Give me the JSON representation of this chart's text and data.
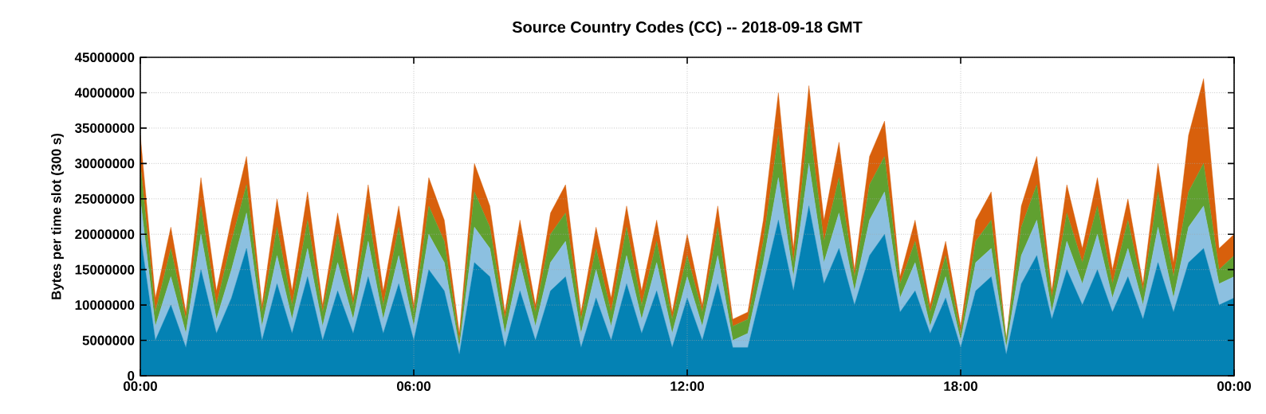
{
  "chart_data": {
    "type": "area",
    "stacked": true,
    "title": "Source Country Codes (CC) -- 2018-09-18 GMT",
    "ylabel": "Bytes per time slot (300 s)",
    "x": [
      0,
      0.33,
      0.67,
      1,
      1.33,
      1.67,
      2,
      2.33,
      2.67,
      3,
      3.33,
      3.67,
      4,
      4.33,
      4.67,
      5,
      5.33,
      5.67,
      6,
      6.33,
      6.67,
      7,
      7.33,
      7.67,
      8,
      8.33,
      8.67,
      9,
      9.33,
      9.67,
      10,
      10.33,
      10.67,
      11,
      11.33,
      11.67,
      12,
      12.33,
      12.67,
      13,
      13.33,
      13.67,
      14,
      14.33,
      14.67,
      15,
      15.33,
      15.67,
      16,
      16.33,
      16.67,
      17,
      17.33,
      17.67,
      18,
      18.33,
      18.67,
      19,
      19.33,
      19.67,
      20,
      20.33,
      20.67,
      21,
      21.33,
      21.67,
      22,
      22.33,
      22.67,
      23,
      23.33,
      23.67,
      24
    ],
    "series": [
      {
        "color": "#0482b4",
        "values": [
          20000000,
          5000000,
          10000000,
          4000000,
          15000000,
          6000000,
          11000000,
          18000000,
          5000000,
          13000000,
          6000000,
          14000000,
          5000000,
          12000000,
          6000000,
          14000000,
          6000000,
          13000000,
          5000000,
          15000000,
          12000000,
          3000000,
          16000000,
          14000000,
          4000000,
          12000000,
          5000000,
          12000000,
          14000000,
          4000000,
          11000000,
          5000000,
          13000000,
          6000000,
          12000000,
          4000000,
          11000000,
          5000000,
          13000000,
          4000000,
          4000000,
          13000000,
          22000000,
          12000000,
          24000000,
          13000000,
          18000000,
          10000000,
          17000000,
          20000000,
          9000000,
          12000000,
          6000000,
          11000000,
          4000000,
          12000000,
          14000000,
          3000000,
          13000000,
          17000000,
          8000000,
          15000000,
          10000000,
          15000000,
          9000000,
          14000000,
          8000000,
          16000000,
          9000000,
          16000000,
          18000000,
          10000000,
          11000000
        ]
      },
      {
        "color": "#8cc0e0",
        "values": [
          5000000,
          2000000,
          4000000,
          2000000,
          5000000,
          2000000,
          4000000,
          5000000,
          2000000,
          4000000,
          2000000,
          4000000,
          2000000,
          4000000,
          2000000,
          5000000,
          2000000,
          4000000,
          2000000,
          5000000,
          4000000,
          1000000,
          5000000,
          4000000,
          2000000,
          4000000,
          2000000,
          4000000,
          5000000,
          2000000,
          4000000,
          2000000,
          4000000,
          2000000,
          4000000,
          2000000,
          3000000,
          2000000,
          4000000,
          1000000,
          2000000,
          3000000,
          6000000,
          2000000,
          6000000,
          3000000,
          5000000,
          2000000,
          5000000,
          6000000,
          2000000,
          4000000,
          1000000,
          3000000,
          1000000,
          4000000,
          4000000,
          1000000,
          4000000,
          5000000,
          1000000,
          4000000,
          3000000,
          5000000,
          2000000,
          4000000,
          2000000,
          5000000,
          2000000,
          5000000,
          6000000,
          3000000,
          3000000
        ]
      },
      {
        "color": "#60a030",
        "values": [
          5000000,
          2000000,
          4000000,
          2000000,
          4000000,
          2000000,
          4000000,
          4000000,
          2000000,
          4000000,
          2000000,
          4000000,
          2000000,
          4000000,
          2000000,
          4000000,
          2000000,
          4000000,
          2000000,
          4000000,
          3000000,
          1000000,
          5000000,
          3000000,
          2000000,
          3000000,
          2000000,
          4000000,
          4000000,
          2000000,
          3000000,
          2000000,
          4000000,
          2000000,
          3000000,
          2000000,
          3000000,
          2000000,
          4000000,
          2000000,
          2000000,
          3000000,
          6000000,
          2000000,
          6000000,
          3000000,
          5000000,
          2000000,
          5000000,
          5000000,
          2000000,
          3000000,
          2000000,
          3000000,
          1000000,
          3000000,
          4000000,
          1000000,
          4000000,
          5000000,
          2000000,
          4000000,
          3000000,
          4000000,
          2000000,
          4000000,
          2000000,
          5000000,
          3000000,
          5000000,
          6000000,
          2000000,
          3000000
        ]
      },
      {
        "color": "#d8600c",
        "values": [
          4000000,
          2000000,
          3000000,
          1000000,
          4000000,
          2000000,
          3000000,
          4000000,
          1000000,
          4000000,
          2000000,
          4000000,
          1000000,
          3000000,
          1000000,
          4000000,
          2000000,
          3000000,
          1000000,
          4000000,
          3000000,
          1000000,
          4000000,
          3000000,
          1000000,
          3000000,
          1000000,
          3000000,
          4000000,
          1000000,
          3000000,
          2000000,
          3000000,
          2000000,
          3000000,
          1000000,
          3000000,
          1000000,
          3000000,
          1000000,
          1000000,
          3000000,
          6000000,
          2000000,
          5000000,
          3000000,
          5000000,
          1000000,
          4000000,
          5000000,
          1000000,
          3000000,
          1000000,
          2000000,
          1000000,
          3000000,
          4000000,
          0,
          3000000,
          4000000,
          1000000,
          4000000,
          2000000,
          4000000,
          2000000,
          3000000,
          1000000,
          4000000,
          2000000,
          8000000,
          12000000,
          3000000,
          3000000
        ]
      }
    ],
    "xlim": [
      0,
      24
    ],
    "xticks": [
      {
        "value": 0,
        "label": "00:00"
      },
      {
        "value": 6,
        "label": "06:00"
      },
      {
        "value": 12,
        "label": "12:00"
      },
      {
        "value": 18,
        "label": "18:00"
      },
      {
        "value": 24,
        "label": "00:00"
      }
    ],
    "ylim": [
      0,
      45000000
    ],
    "yticks": [
      0,
      5000000,
      10000000,
      15000000,
      20000000,
      25000000,
      30000000,
      35000000,
      40000000,
      45000000
    ],
    "grid": true
  }
}
